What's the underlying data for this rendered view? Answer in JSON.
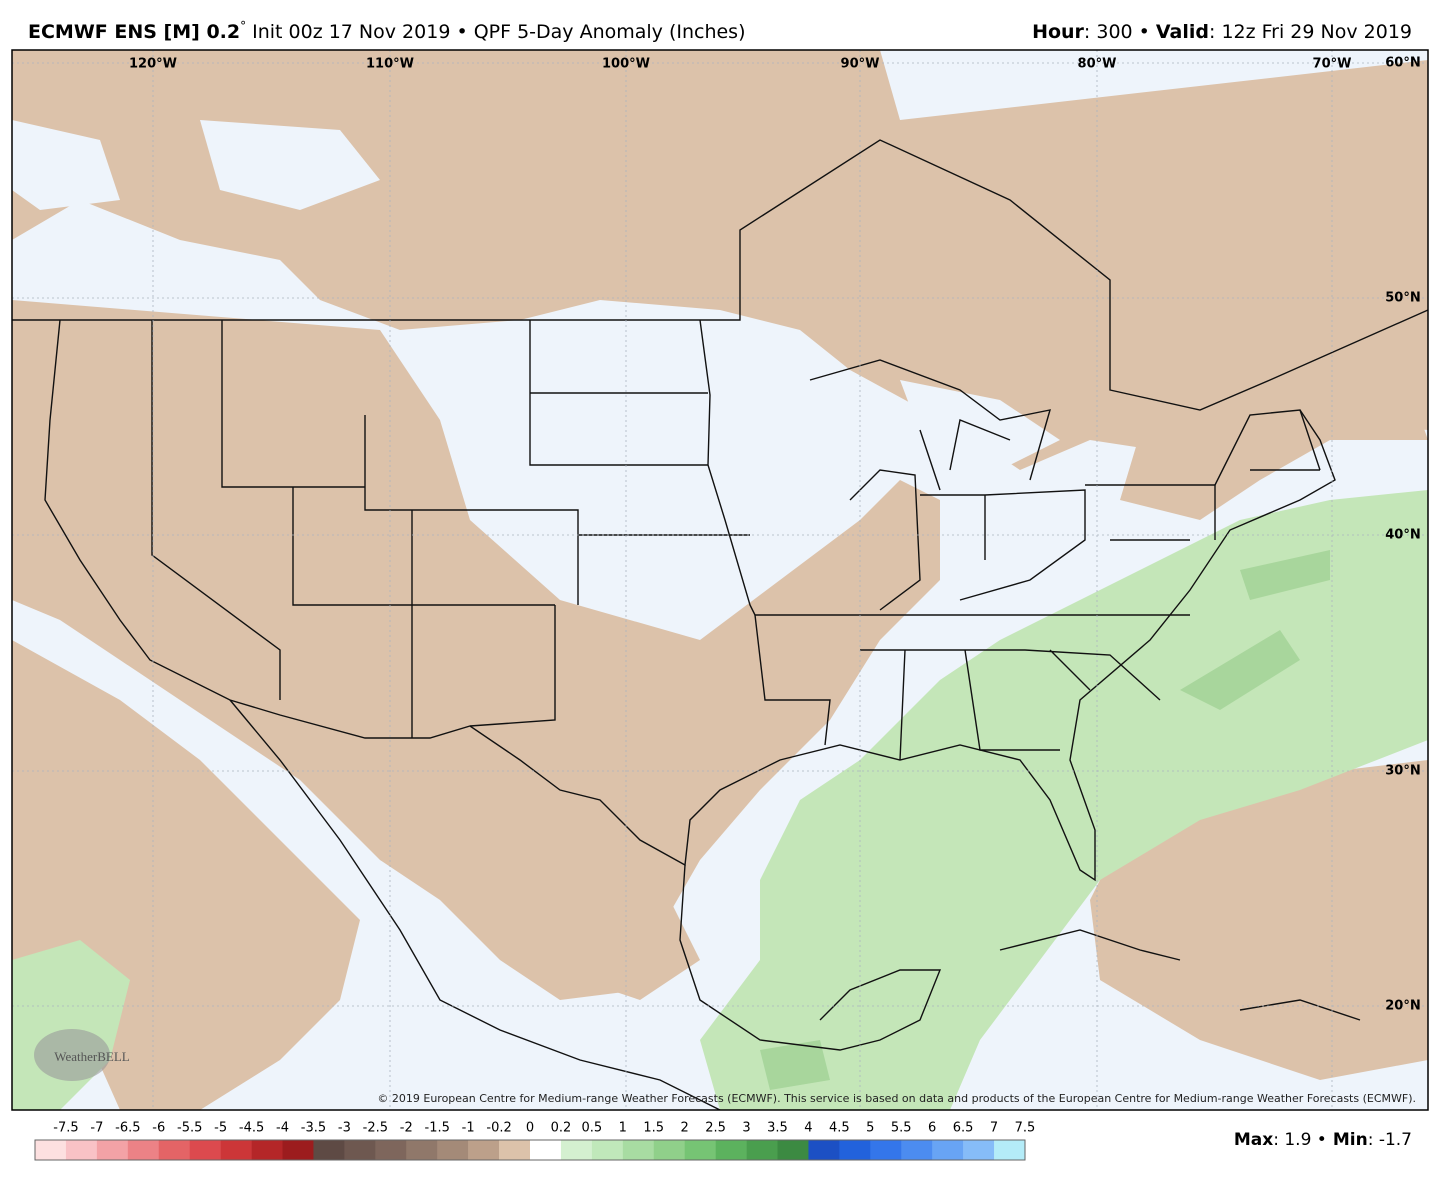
{
  "header": {
    "model": "ECMWF ENS [M] 0.2",
    "degree": "°",
    "run": "Init 00z 17 Nov 2019 • QPF 5-Day Anomaly (Inches)",
    "hour_key": "Hour",
    "hour_value": ": 300 •",
    "valid_key": "Valid",
    "valid_value": ": 12z Fri 29 Nov 2019"
  },
  "map": {
    "lon_labels": [
      "120°W",
      "110°W",
      "100°W",
      "90°W",
      "80°W",
      "70°W"
    ],
    "lat_labels": [
      "60°N",
      "50°N",
      "40°N",
      "30°N",
      "20°N"
    ],
    "logo": "WeatherBELL",
    "copyright": "© 2019 European Centre for Medium-range Weather Forecasts (ECMWF). This service is based on data and products of the European Centre for Medium-range Weather Forecasts (ECMWF)."
  },
  "legend": {
    "items": [
      {
        "label": "-7.5",
        "color": "#fde0e0"
      },
      {
        "label": "-7",
        "color": "#f9c2c6"
      },
      {
        "label": "-6.5",
        "color": "#f3a2a6"
      },
      {
        "label": "-6",
        "color": "#ec8286"
      },
      {
        "label": "-5.5",
        "color": "#e46466"
      },
      {
        "label": "-5",
        "color": "#dc4a4e"
      },
      {
        "label": "-4.5",
        "color": "#cc3638"
      },
      {
        "label": "-4",
        "color": "#b42628"
      },
      {
        "label": "-3.5",
        "color": "#9c1c1e"
      },
      {
        "label": "-3",
        "color": "#5e4a44"
      },
      {
        "label": "-2.5",
        "color": "#6e5850"
      },
      {
        "label": "-2",
        "color": "#7e665c"
      },
      {
        "label": "-1.5",
        "color": "#90786a"
      },
      {
        "label": "-1",
        "color": "#a48a78"
      },
      {
        "label": "-0.2",
        "color": "#bca08a"
      },
      {
        "label": "0",
        "color": "#dcc2aa"
      },
      {
        "label": "0.2",
        "color": "#ffffff"
      },
      {
        "label": "0.5",
        "color": "#d4f0d0"
      },
      {
        "label": "1",
        "color": "#c0e8ba"
      },
      {
        "label": "1.5",
        "color": "#a8dca2"
      },
      {
        "label": "2",
        "color": "#90d08a"
      },
      {
        "label": "2.5",
        "color": "#76c474"
      },
      {
        "label": "3",
        "color": "#5cb25e"
      },
      {
        "label": "3.5",
        "color": "#4a9e4e"
      },
      {
        "label": "4",
        "color": "#3c8a42"
      },
      {
        "label": "4.5",
        "color": "#1c50c4"
      },
      {
        "label": "5",
        "color": "#2262dc"
      },
      {
        "label": "5.5",
        "color": "#3476ea"
      },
      {
        "label": "6",
        "color": "#4c8cf0"
      },
      {
        "label": "6.5",
        "color": "#68a4f4"
      },
      {
        "label": "7",
        "color": "#86bcf8"
      },
      {
        "label": "7.5",
        "color": "#b4ecf8"
      }
    ]
  },
  "stats": {
    "max_key": "Max",
    "max_value": ": 1.9 •",
    "min_key": "Min",
    "min_value": ": -1.7"
  }
}
